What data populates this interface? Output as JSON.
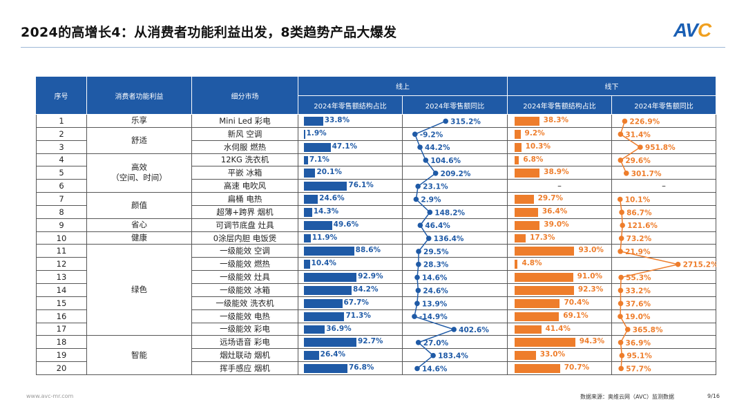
{
  "title": "2024的高增长4：从消费者功能利益出发，8类趋势产品大爆发",
  "logo": {
    "text": "AVC",
    "colors": {
      "blue": "#1a5fb4",
      "orange": "#f0a020"
    }
  },
  "colors": {
    "header": "#1f5aa6",
    "online": "#1f5aa6",
    "offline": "#ee7d2b"
  },
  "table": {
    "headers": {
      "no": "序号",
      "benefit": "消费者功能利益",
      "market": "细分市场",
      "online": "线上",
      "offline": "线下",
      "share": "2024年零售额结构占比",
      "yoy": "2024年零售额同比"
    },
    "benefit_groups": [
      {
        "label": "乐享",
        "rows": 1
      },
      {
        "label": "舒适",
        "rows": 2
      },
      {
        "label": "高效\n（空间、时间）",
        "rows": 3
      },
      {
        "label": "颜值",
        "rows": 2
      },
      {
        "label": "省心",
        "rows": 1
      },
      {
        "label": "健康",
        "rows": 1
      },
      {
        "label": "绿色",
        "rows": 7
      },
      {
        "label": "智能",
        "rows": 3
      }
    ],
    "rows": [
      {
        "no": "1",
        "market": "Mini Led 彩电",
        "online_share": 33.8,
        "online_yoy": 315.2,
        "offline_share": 38.3,
        "offline_yoy": 226.9
      },
      {
        "no": "2",
        "market": "新风 空调",
        "online_share": 1.9,
        "online_yoy": -9.2,
        "offline_share": 9.2,
        "offline_yoy": 31.4
      },
      {
        "no": "3",
        "market": "水伺服 燃热",
        "online_share": 47.1,
        "online_yoy": 44.2,
        "offline_share": 10.3,
        "offline_yoy": 951.8
      },
      {
        "no": "4",
        "market": "12KG 洗衣机",
        "online_share": 7.1,
        "online_yoy": 104.6,
        "offline_share": 6.8,
        "offline_yoy": 29.6
      },
      {
        "no": "5",
        "market": "平嵌 冰箱",
        "online_share": 20.1,
        "online_yoy": 209.2,
        "offline_share": 38.9,
        "offline_yoy": 301.7
      },
      {
        "no": "6",
        "market": "高速 电吹风",
        "online_share": 76.1,
        "online_yoy": 23.1,
        "offline_share": null,
        "offline_yoy": null
      },
      {
        "no": "7",
        "market": "扁桶 电热",
        "online_share": 24.6,
        "online_yoy": 2.9,
        "offline_share": 29.7,
        "offline_yoy": 10.1
      },
      {
        "no": "8",
        "market": "超薄+跨界 烟机",
        "online_share": 14.3,
        "online_yoy": 148.2,
        "offline_share": 36.4,
        "offline_yoy": 86.7
      },
      {
        "no": "9",
        "market": "可调节底盘 灶具",
        "online_share": 49.6,
        "online_yoy": 46.4,
        "offline_share": 39.0,
        "offline_yoy": 121.6
      },
      {
        "no": "10",
        "market": "0涂层内胆 电饭煲",
        "online_share": 11.9,
        "online_yoy": 136.4,
        "offline_share": 17.3,
        "offline_yoy": 73.2
      },
      {
        "no": "11",
        "market": "一级能效 空调",
        "online_share": 88.6,
        "online_yoy": 29.5,
        "offline_share": 93.0,
        "offline_yoy": 21.9
      },
      {
        "no": "12",
        "market": "一级能效 燃热",
        "online_share": 10.4,
        "online_yoy": 28.3,
        "offline_share": 4.8,
        "offline_yoy": 2715.2
      },
      {
        "no": "13",
        "market": "一级能效 灶具",
        "online_share": 92.9,
        "online_yoy": 14.6,
        "offline_share": 91.0,
        "offline_yoy": 55.3
      },
      {
        "no": "14",
        "market": "一级能效 冰箱",
        "online_share": 84.2,
        "online_yoy": 24.6,
        "offline_share": 92.3,
        "offline_yoy": 33.2
      },
      {
        "no": "15",
        "market": "一级能效 洗衣机",
        "online_share": 67.7,
        "online_yoy": 13.9,
        "offline_share": 70.4,
        "offline_yoy": 37.6
      },
      {
        "no": "16",
        "market": "一级能效 电热",
        "online_share": 71.3,
        "online_yoy": -14.9,
        "offline_share": 69.1,
        "offline_yoy": 19.0
      },
      {
        "no": "17",
        "market": "一级能效 彩电",
        "online_share": 36.9,
        "online_yoy": 402.6,
        "offline_share": 41.4,
        "offline_yoy": 365.8
      },
      {
        "no": "18",
        "market": "远场语音 彩电",
        "online_share": 92.7,
        "online_yoy": 27.0,
        "offline_share": 94.3,
        "offline_yoy": 36.9
      },
      {
        "no": "19",
        "market": "烟灶联动 烟机",
        "online_share": 26.4,
        "online_yoy": 183.4,
        "offline_share": 33.0,
        "offline_yoy": 95.1
      },
      {
        "no": "20",
        "market": "挥手感应 烟机",
        "online_share": 76.8,
        "online_yoy": 14.6,
        "offline_share": 70.7,
        "offline_yoy": 57.7
      }
    ],
    "missing": "–"
  },
  "footer": {
    "site": "www.avc-mr.com",
    "source": "数据来源：奥维云网（AVC）监测数据",
    "page": "9/16"
  }
}
